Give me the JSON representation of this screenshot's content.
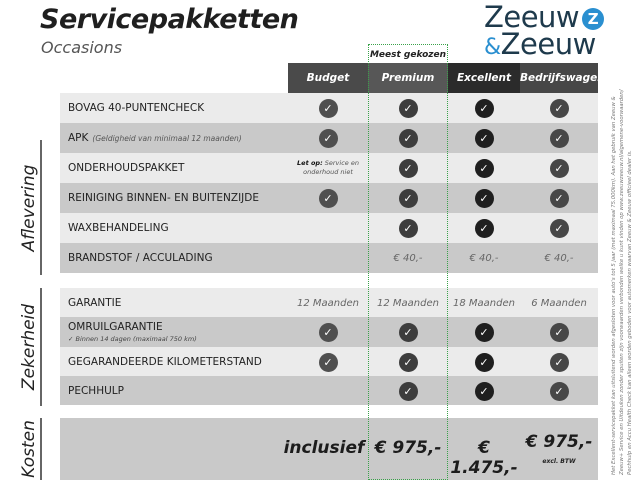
{
  "header": {
    "title": "Servicepakketten",
    "subtitle": "Occasions"
  },
  "logo": {
    "line1": "Zeeuw",
    "line2_amp": "&",
    "line2": "Zeeuw"
  },
  "highlight_label": "Meest gekozen",
  "colors": {
    "highlight_border": "#3aa24a",
    "logo_blue": "#2a8fd0",
    "logo_dark": "#1e3a4c"
  },
  "columns": [
    {
      "label": "Budget",
      "bg": "#4a4a4a",
      "check": "#4f4f4f"
    },
    {
      "label": "Premium",
      "bg": "#575757",
      "check": "#3d3d3d"
    },
    {
      "label": "Excellent",
      "bg": "#2b2b2b",
      "check": "#1f1f1f"
    },
    {
      "label": "Bedrijfswagens",
      "bg": "#474747",
      "check": "#474747"
    }
  ],
  "sections": [
    {
      "label": "Aflevering",
      "rows": [
        {
          "label": "BOVAG 40-PUNTENCHECK",
          "cells": [
            "check",
            "check",
            "check",
            "check"
          ]
        },
        {
          "label": "APK",
          "note": "(Geldigheid van minimaal 12 maanden)",
          "cells": [
            "check",
            "check",
            "check",
            "check"
          ]
        },
        {
          "label": "ONDERHOUDSPAKKET",
          "budget_note_bold": "Let op:",
          "budget_note": "Service en onderhoud niet",
          "cells": [
            "note",
            "check",
            "check",
            "check"
          ]
        },
        {
          "label": "REINIGING BINNEN- EN BUITENZIJDE",
          "cells": [
            "check",
            "check",
            "check",
            "check"
          ]
        },
        {
          "label": "WAXBEHANDELING",
          "cells": [
            "",
            "check",
            "check",
            "check"
          ]
        },
        {
          "label": "BRANDSTOF / ACCULADING",
          "cells": [
            "",
            "€ 40,-",
            "€ 40,-",
            "€ 40,-"
          ]
        }
      ]
    },
    {
      "label": "Zekerheid",
      "rows": [
        {
          "label": "GARANTIE",
          "cells": [
            "12 Maanden",
            "12 Maanden",
            "18 Maanden",
            "6 Maanden"
          ]
        },
        {
          "label": "OMRUILGARANTIE",
          "sub": "✓   Binnen 14 dagen (maximaal 750 km)",
          "cells": [
            "check",
            "check",
            "check",
            "check"
          ]
        },
        {
          "label": "GEGARANDEERDE KILOMETERSTAND",
          "cells": [
            "check",
            "check",
            "check",
            "check"
          ]
        },
        {
          "label": "PECHHULP",
          "cells": [
            "",
            "check",
            "check",
            "check"
          ]
        }
      ]
    },
    {
      "label": "Kosten"
    }
  ],
  "prices": [
    "inclusief",
    "€ 975,-",
    "€ 1.475,-",
    "€ 975,-"
  ],
  "price_note": "excl. BTW",
  "disclaimer": "Het Excellent-servicepakket kan uitsluitend worden afgesloten voor auto's tot 5 jaar (met maximaal 75.000km). Aan het gebruik van Zeeuw & Zeeuw+ Service en Uitdeuken zonder spuiten zijn voorwaarden verbonden welke u kunt vinden op www.zeeuwzeeuw.nl/algemene-voorwaarden/ Pechhulp en Accu Health Check kan alleen worden geboden voor automerken waarvan Zeeuw & Zeeuw officieel dealer is."
}
